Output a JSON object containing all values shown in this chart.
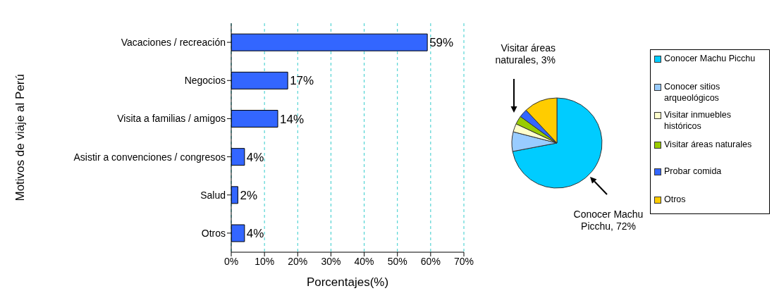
{
  "chart_data": [
    {
      "type": "bar",
      "orientation": "horizontal",
      "xlabel": "Porcentajes(%)",
      "ylabel": "Motivos de viaje al Perú",
      "categories": [
        "Vacaciones / recreación",
        "Negocios",
        "Visita a familias / amigos",
        "Asistir a convenciones / congresos",
        "Salud",
        "Otros"
      ],
      "values": [
        59,
        17,
        14,
        4,
        2,
        4
      ],
      "value_labels": [
        "59%",
        "17%",
        "14%",
        "4%",
        "2%",
        "4%"
      ],
      "color": "#3366ff",
      "xlim": [
        0,
        70
      ],
      "xticks": [
        {
          "value": 0,
          "label": "0%"
        },
        {
          "value": 10,
          "label": "10%"
        },
        {
          "value": 20,
          "label": "20%"
        },
        {
          "value": 30,
          "label": "30%"
        },
        {
          "value": 40,
          "label": "40%"
        },
        {
          "value": 50,
          "label": "50%"
        },
        {
          "value": 60,
          "label": "60%"
        },
        {
          "value": 70,
          "label": "70%"
        }
      ],
      "grid": "x"
    },
    {
      "type": "pie",
      "categories": [
        "Conocer Machu Picchu",
        "Conocer sitios arqueológicos",
        "Visitar inmuebles históricos",
        "Visitar áreas naturales",
        "Probar comida",
        "Otros"
      ],
      "values": [
        72,
        7,
        3,
        3,
        3,
        12
      ],
      "colors": [
        "#00ccff",
        "#99ccff",
        "#ffffcc",
        "#99cc00",
        "#3366ff",
        "#ffcc00"
      ],
      "annotations": [
        "Visitar áreas naturales, 3%",
        "Conocer Machu Picchu, 72%"
      ],
      "legend": "right"
    }
  ]
}
